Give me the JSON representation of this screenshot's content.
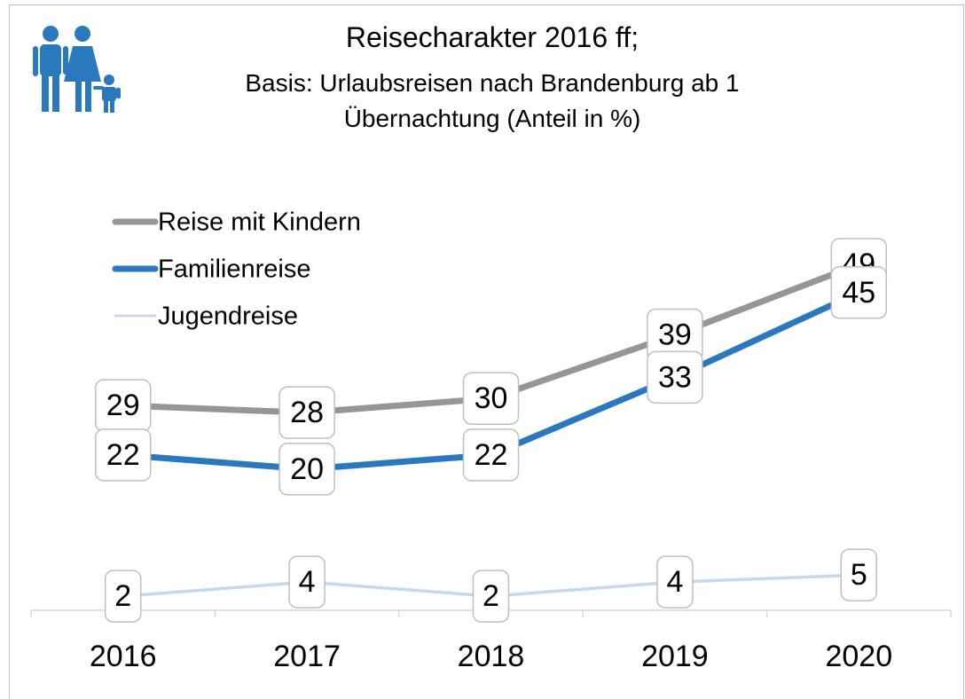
{
  "chart_data": {
    "type": "line",
    "title": "Reisecharakter 2016 ff;",
    "subtitle": "Basis: Urlaubsreisen nach Brandenburg ab 1 Übernachtung (Anteil in %)",
    "categories": [
      "2016",
      "2017",
      "2018",
      "2019",
      "2020"
    ],
    "series": [
      {
        "name": "Reise mit Kindern",
        "color": "#969696",
        "values": [
          29,
          28,
          30,
          39,
          49
        ]
      },
      {
        "name": "Familienreise",
        "color": "#2a78bd",
        "values": [
          22,
          20,
          22,
          33,
          45
        ]
      },
      {
        "name": "Jugendreise",
        "color": "#c9d7ee",
        "values": [
          2,
          4,
          2,
          4,
          5
        ]
      }
    ],
    "ylim": [
      0,
      50
    ],
    "legend": "upper-left"
  }
}
